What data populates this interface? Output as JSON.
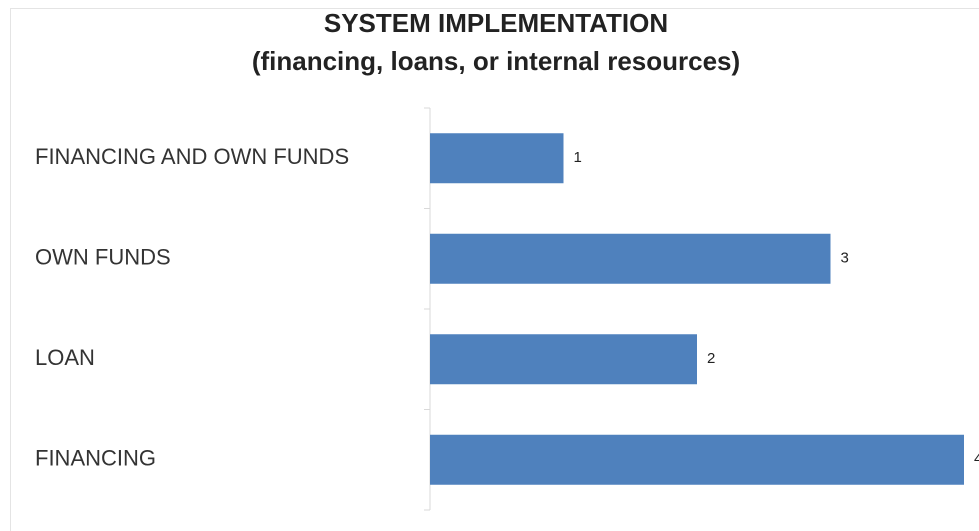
{
  "chart_data": {
    "type": "hbar",
    "title": "SYSTEM IMPLEMENTATION",
    "subtitle": "(financing, loans, or internal resources)",
    "categories": [
      "FINANCING AND OWN FUNDS",
      "OWN FUNDS",
      "LOAN",
      "FINANCING"
    ],
    "values": [
      1,
      3,
      2,
      4
    ],
    "color": "#4f81bd",
    "xlim": [
      0,
      4
    ]
  }
}
